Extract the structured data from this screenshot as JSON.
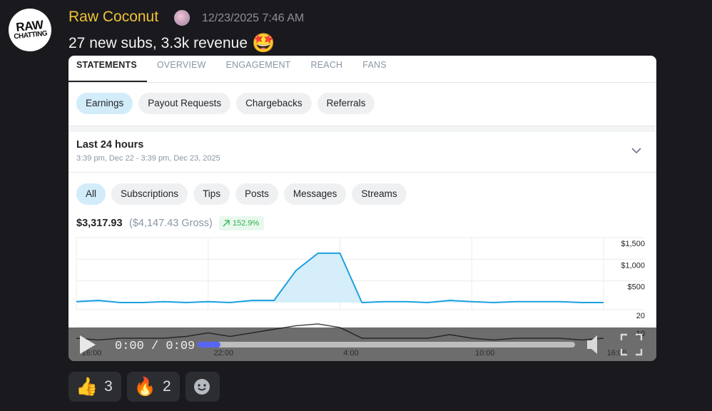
{
  "message": {
    "avatar_text": [
      "RAW",
      "CHATTING"
    ],
    "author": "Raw Coconut",
    "timestamp": "12/23/2025 7:46 AM",
    "text": "27 new subs, 3.3k revenue",
    "emoji": "🤩"
  },
  "embed": {
    "tabs": [
      "STATEMENTS",
      "OVERVIEW",
      "ENGAGEMENT",
      "REACH",
      "FANS"
    ],
    "active_tab": 0,
    "subtabs": [
      "Earnings",
      "Payout Requests",
      "Chargebacks",
      "Referrals"
    ],
    "active_subtab": 0,
    "period": {
      "title": "Last 24 hours",
      "range": "3:39 pm, Dec 22 - 3:39 pm, Dec 23, 2025"
    },
    "filters": [
      "All",
      "Subscriptions",
      "Tips",
      "Posts",
      "Messages",
      "Streams"
    ],
    "active_filter": 0,
    "summary": {
      "net": "$3,317.93",
      "gross": "($4,147.43 Gross)",
      "change": "152.9%"
    },
    "video": {
      "time": "0:00 / 0:09"
    }
  },
  "chart_data": [
    {
      "type": "area",
      "color": "#1da1e0",
      "fill": "#d6eefa",
      "values": [
        20,
        50,
        0,
        0,
        20,
        0,
        20,
        0,
        50,
        50,
        740,
        1140,
        1140,
        0,
        20,
        20,
        0,
        50,
        20,
        0,
        20,
        20,
        20,
        0,
        0
      ],
      "xlim": [
        0,
        24
      ],
      "ylim": [
        0,
        1500
      ],
      "yticks": [
        {
          "value": 500,
          "label": "$500"
        },
        {
          "value": 1000,
          "label": "$1,000"
        },
        {
          "value": 1500,
          "label": "$1,500"
        }
      ],
      "xgrid": [
        0,
        6,
        12,
        18,
        24
      ],
      "grid": true
    },
    {
      "type": "line",
      "color": "#4a4a4a",
      "values": [
        4,
        3,
        4,
        4,
        4,
        5,
        7,
        5,
        7,
        9,
        11,
        12,
        10,
        4,
        4,
        4,
        4,
        6,
        4,
        3,
        4,
        4,
        4,
        3,
        4
      ],
      "xlim": [
        0,
        24
      ],
      "ylim": [
        0,
        20
      ],
      "yticks": [
        10,
        20
      ],
      "xticks": [
        {
          "value": 0.7,
          "label": "16:00"
        },
        {
          "value": 6.7,
          "label": "22:00"
        },
        {
          "value": 12.5,
          "label": "4:00"
        },
        {
          "value": 18.6,
          "label": "10:00"
        },
        {
          "value": 24.6,
          "label": "16:00"
        }
      ],
      "grid": true
    }
  ],
  "reactions": [
    {
      "emoji": "👍",
      "count": 3
    },
    {
      "emoji": "🔥",
      "count": 2
    }
  ]
}
